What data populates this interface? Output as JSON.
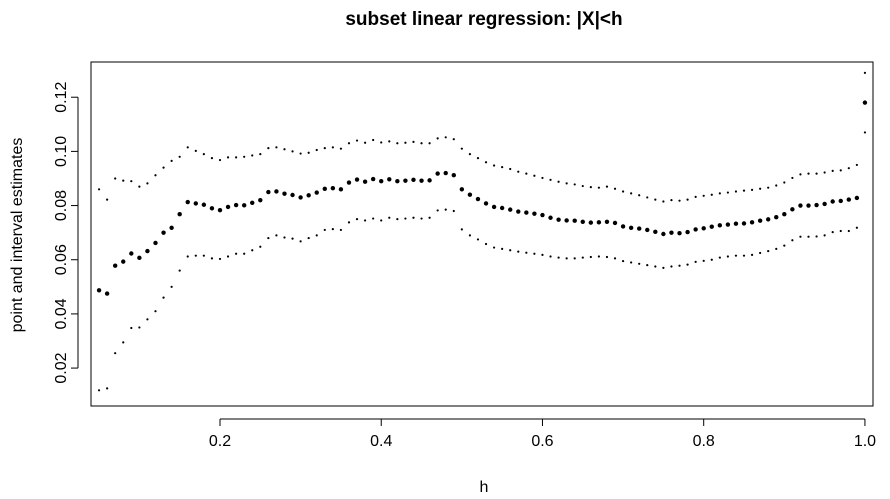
{
  "chart_data": {
    "type": "scatter",
    "title": "subset linear regression: |X|<h",
    "xlabel": "h",
    "ylabel": "point and interval estimates",
    "xlim": [
      0.04,
      1.01
    ],
    "ylim": [
      0.006,
      0.133
    ],
    "x_ticks": [
      "0.2",
      "0.4",
      "0.6",
      "0.8",
      "1.0"
    ],
    "y_ticks": [
      "0.02",
      "0.04",
      "0.06",
      "0.08",
      "0.10",
      "0.12"
    ],
    "grid": false,
    "legend": "none",
    "x": [
      0.05,
      0.06,
      0.07,
      0.08,
      0.09,
      0.1,
      0.11,
      0.12,
      0.13,
      0.14,
      0.15,
      0.16,
      0.17,
      0.18,
      0.19,
      0.2,
      0.21,
      0.22,
      0.23,
      0.24,
      0.25,
      0.26,
      0.27,
      0.28,
      0.29,
      0.3,
      0.31,
      0.32,
      0.33,
      0.34,
      0.35,
      0.36,
      0.37,
      0.38,
      0.39,
      0.4,
      0.41,
      0.42,
      0.43,
      0.44,
      0.45,
      0.46,
      0.47,
      0.48,
      0.49,
      0.5,
      0.51,
      0.52,
      0.53,
      0.54,
      0.55,
      0.56,
      0.57,
      0.58,
      0.59,
      0.6,
      0.61,
      0.62,
      0.63,
      0.64,
      0.65,
      0.66,
      0.67,
      0.68,
      0.69,
      0.7,
      0.71,
      0.72,
      0.73,
      0.74,
      0.75,
      0.76,
      0.77,
      0.78,
      0.79,
      0.8,
      0.81,
      0.82,
      0.83,
      0.84,
      0.85,
      0.86,
      0.87,
      0.88,
      0.89,
      0.9,
      0.91,
      0.92,
      0.93,
      0.94,
      0.95,
      0.96,
      0.97,
      0.98,
      0.99,
      1.0
    ],
    "series": [
      {
        "role": "point estimate",
        "marker_size": 2.2,
        "values": [
          0.0487,
          0.0475,
          0.0578,
          0.0593,
          0.0623,
          0.0607,
          0.0632,
          0.0662,
          0.07,
          0.0718,
          0.0768,
          0.0813,
          0.0808,
          0.0803,
          0.079,
          0.0783,
          0.0795,
          0.0802,
          0.0801,
          0.081,
          0.082,
          0.085,
          0.0852,
          0.0844,
          0.0839,
          0.083,
          0.0838,
          0.0848,
          0.0862,
          0.0864,
          0.086,
          0.0885,
          0.0896,
          0.0888,
          0.0898,
          0.089,
          0.0897,
          0.089,
          0.0892,
          0.0895,
          0.0892,
          0.0893,
          0.0918,
          0.092,
          0.0912,
          0.086,
          0.084,
          0.0824,
          0.0808,
          0.0795,
          0.0791,
          0.0785,
          0.0778,
          0.0774,
          0.077,
          0.0765,
          0.0755,
          0.0748,
          0.0745,
          0.0744,
          0.074,
          0.0737,
          0.0738,
          0.074,
          0.0736,
          0.0723,
          0.0718,
          0.0715,
          0.071,
          0.0703,
          0.0695,
          0.07,
          0.0698,
          0.0702,
          0.0712,
          0.0716,
          0.0722,
          0.0727,
          0.073,
          0.0733,
          0.0734,
          0.0738,
          0.0744,
          0.0749,
          0.0757,
          0.0768,
          0.0786,
          0.08,
          0.08,
          0.0802,
          0.0806,
          0.0815,
          0.0817,
          0.0822,
          0.0828,
          0.118
        ]
      },
      {
        "role": "upper interval",
        "marker_size": 1.1,
        "values": [
          0.086,
          0.0822,
          0.09,
          0.0892,
          0.089,
          0.087,
          0.0882,
          0.0912,
          0.094,
          0.0965,
          0.098,
          0.1015,
          0.1002,
          0.099,
          0.0975,
          0.0968,
          0.0978,
          0.0978,
          0.098,
          0.0985,
          0.099,
          0.1012,
          0.1015,
          0.1008,
          0.1,
          0.0992,
          0.0995,
          0.1005,
          0.1012,
          0.1015,
          0.101,
          0.103,
          0.104,
          0.1032,
          0.1042,
          0.1033,
          0.1037,
          0.103,
          0.1032,
          0.1035,
          0.103,
          0.103,
          0.1048,
          0.1052,
          0.1045,
          0.101,
          0.099,
          0.0975,
          0.096,
          0.0948,
          0.0942,
          0.0935,
          0.0925,
          0.0918,
          0.091,
          0.0902,
          0.0895,
          0.0888,
          0.0882,
          0.0878,
          0.0872,
          0.0868,
          0.0866,
          0.087,
          0.0862,
          0.0852,
          0.0845,
          0.0838,
          0.083,
          0.0822,
          0.0815,
          0.082,
          0.0818,
          0.0822,
          0.0832,
          0.0836,
          0.084,
          0.0845,
          0.0848,
          0.0852,
          0.0855,
          0.0858,
          0.0862,
          0.0866,
          0.0874,
          0.0885,
          0.0902,
          0.0915,
          0.0918,
          0.0918,
          0.0922,
          0.0928,
          0.093,
          0.0938,
          0.095,
          0.129
        ]
      },
      {
        "role": "lower interval",
        "marker_size": 1.1,
        "values": [
          0.0118,
          0.0125,
          0.0255,
          0.0295,
          0.0348,
          0.035,
          0.038,
          0.041,
          0.046,
          0.05,
          0.056,
          0.0612,
          0.0615,
          0.0615,
          0.0605,
          0.0603,
          0.0612,
          0.0622,
          0.0622,
          0.0635,
          0.0648,
          0.068,
          0.069,
          0.0682,
          0.0678,
          0.0668,
          0.068,
          0.069,
          0.071,
          0.0713,
          0.071,
          0.0738,
          0.075,
          0.0745,
          0.0752,
          0.0745,
          0.0755,
          0.075,
          0.0752,
          0.0755,
          0.0752,
          0.0755,
          0.0782,
          0.0785,
          0.078,
          0.0712,
          0.069,
          0.0675,
          0.0658,
          0.0645,
          0.064,
          0.0635,
          0.063,
          0.0626,
          0.0622,
          0.0618,
          0.0612,
          0.0608,
          0.0605,
          0.0605,
          0.0608,
          0.061,
          0.0612,
          0.061,
          0.0605,
          0.0595,
          0.059,
          0.0585,
          0.058,
          0.0575,
          0.057,
          0.0575,
          0.0578,
          0.0582,
          0.0592,
          0.0596,
          0.06,
          0.0608,
          0.0612,
          0.0615,
          0.0615,
          0.0618,
          0.0625,
          0.0632,
          0.064,
          0.0652,
          0.0672,
          0.0685,
          0.0685,
          0.0686,
          0.069,
          0.0702,
          0.0706,
          0.0706,
          0.0718,
          0.107
        ]
      }
    ]
  }
}
